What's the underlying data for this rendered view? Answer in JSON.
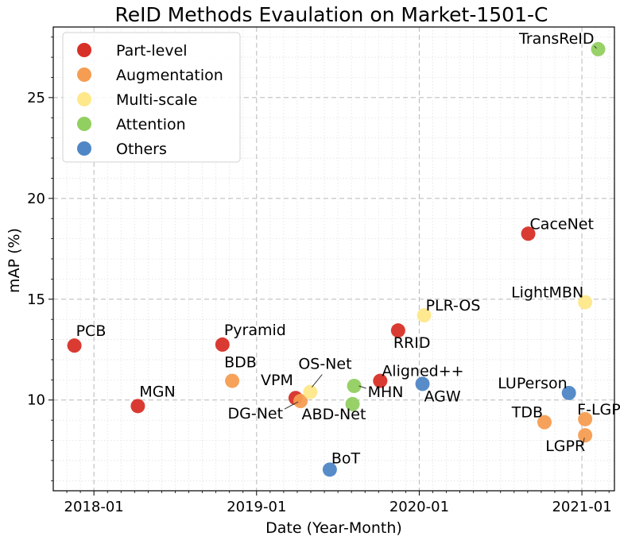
{
  "chart_data": {
    "type": "scatter",
    "title": "ReID Methods Evaulation on Market-1501-C",
    "xlabel": "Date (Year-Month)",
    "ylabel": "mAP (%)",
    "xlim": [
      2017.75,
      2021.2
    ],
    "ylim": [
      5.5,
      28.5
    ],
    "x_ticks": [
      {
        "value": 2018,
        "label": "2018-01"
      },
      {
        "value": 2019,
        "label": "2019-01"
      },
      {
        "value": 2020,
        "label": "2020-01"
      },
      {
        "value": 2021,
        "label": "2021-01"
      }
    ],
    "y_ticks": [
      10,
      15,
      20,
      25
    ],
    "grid": true,
    "legend_position": "top-left",
    "categories": [
      {
        "name": "Part-level",
        "color": "#d73027"
      },
      {
        "name": "Augmentation",
        "color": "#f59d52"
      },
      {
        "name": "Multi-scale",
        "color": "#fee88b"
      },
      {
        "name": "Attention",
        "color": "#91cf60"
      },
      {
        "name": "Others",
        "color": "#4f86c6"
      }
    ],
    "points": [
      {
        "label": "PCB",
        "x": 2017.88,
        "y": 12.7,
        "category": "Part-level"
      },
      {
        "label": "MGN",
        "x": 2018.27,
        "y": 9.7,
        "category": "Part-level"
      },
      {
        "label": "Pyramid",
        "x": 2018.79,
        "y": 12.75,
        "category": "Part-level"
      },
      {
        "label": "BDB",
        "x": 2018.85,
        "y": 10.95,
        "category": "Augmentation"
      },
      {
        "label": "VPM",
        "x": 2019.24,
        "y": 10.1,
        "category": "Part-level"
      },
      {
        "label": "DG-Net",
        "x": 2019.27,
        "y": 9.95,
        "category": "Augmentation"
      },
      {
        "label": "OS-Net",
        "x": 2019.33,
        "y": 10.4,
        "category": "Multi-scale"
      },
      {
        "label": "BoT",
        "x": 2019.45,
        "y": 6.55,
        "category": "Others"
      },
      {
        "label": "ABD-Net",
        "x": 2019.59,
        "y": 9.8,
        "category": "Attention"
      },
      {
        "label": "MHN",
        "x": 2019.6,
        "y": 10.7,
        "category": "Attention"
      },
      {
        "label": "Aligned++",
        "x": 2019.76,
        "y": 10.95,
        "category": "Part-level"
      },
      {
        "label": "RRID",
        "x": 2019.87,
        "y": 13.45,
        "category": "Part-level"
      },
      {
        "label": "AGW",
        "x": 2020.02,
        "y": 10.8,
        "category": "Others"
      },
      {
        "label": "PLR-OS",
        "x": 2020.03,
        "y": 14.2,
        "category": "Multi-scale"
      },
      {
        "label": "CaceNet",
        "x": 2020.67,
        "y": 18.25,
        "category": "Part-level"
      },
      {
        "label": "TDB",
        "x": 2020.77,
        "y": 8.9,
        "category": "Augmentation"
      },
      {
        "label": "LUPerson",
        "x": 2020.92,
        "y": 10.35,
        "category": "Others"
      },
      {
        "label": "F-LGPR",
        "x": 2021.02,
        "y": 9.05,
        "category": "Augmentation"
      },
      {
        "label": "LGPR",
        "x": 2021.02,
        "y": 8.25,
        "category": "Augmentation"
      },
      {
        "label": "LightMBN",
        "x": 2021.02,
        "y": 14.85,
        "category": "Multi-scale"
      },
      {
        "label": "TransReID",
        "x": 2021.1,
        "y": 27.4,
        "category": "Attention"
      }
    ]
  }
}
